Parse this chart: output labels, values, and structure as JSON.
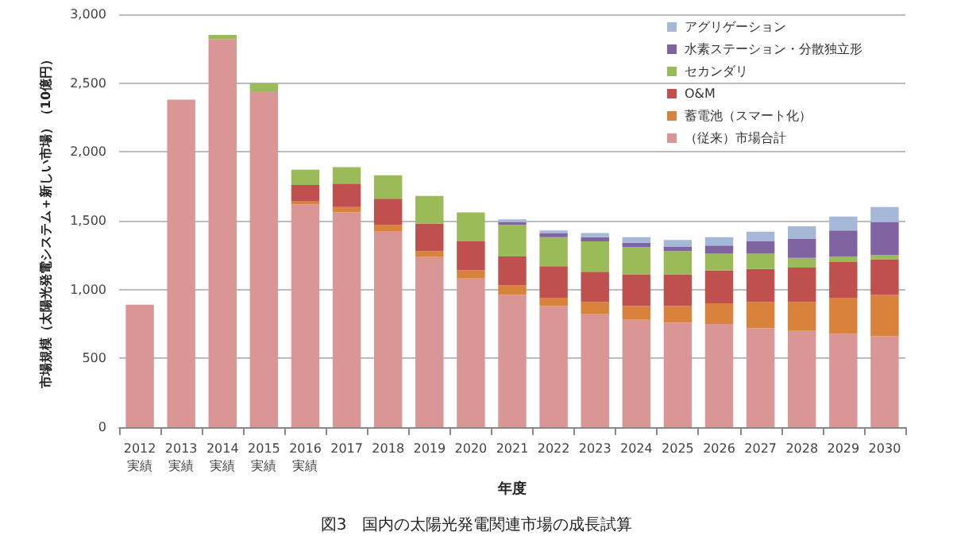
{
  "chart_data": {
    "type": "bar",
    "stacked": true,
    "title": "図3　国内の太陽光発電関連市場の成長試算",
    "xlabel": "年度",
    "ylabel": "市場規模（太陽光発電システム＋新しい市場）（10億円）",
    "categories": [
      "2012\n実績",
      "2013\n実績",
      "2014\n実績",
      "2015\n実績",
      "2016\n実績",
      "2017",
      "2018",
      "2019",
      "2020",
      "2021",
      "2022",
      "2023",
      "2024",
      "2025",
      "2026",
      "2027",
      "2028",
      "2029",
      "2030"
    ],
    "series": [
      {
        "name": "（従来）市場合計",
        "color": "#d99694",
        "values": [
          890,
          2380,
          2820,
          2440,
          1620,
          1560,
          1420,
          1240,
          1080,
          960,
          880,
          820,
          780,
          760,
          750,
          720,
          700,
          680,
          660
        ]
      },
      {
        "name": "蓄電池（スマート化）",
        "color": "#d9823b",
        "values": [
          null,
          null,
          null,
          null,
          20,
          40,
          50,
          40,
          60,
          70,
          60,
          90,
          100,
          120,
          150,
          190,
          210,
          260,
          300
        ]
      },
      {
        "name": "O&M",
        "color": "#c0504d",
        "values": [
          null,
          null,
          null,
          null,
          120,
          170,
          190,
          200,
          210,
          210,
          230,
          220,
          230,
          230,
          240,
          240,
          250,
          260,
          260
        ]
      },
      {
        "name": "セカンダリ",
        "color": "#9bbb59",
        "values": [
          null,
          null,
          30,
          60,
          110,
          120,
          170,
          200,
          210,
          230,
          210,
          220,
          200,
          170,
          120,
          110,
          70,
          40,
          30
        ]
      },
      {
        "name": "水素ステーション・分散独立形",
        "color": "#8064a2",
        "values": [
          null,
          null,
          null,
          null,
          null,
          null,
          null,
          null,
          null,
          20,
          30,
          30,
          30,
          30,
          60,
          90,
          140,
          190,
          240
        ]
      },
      {
        "name": "アグリゲーション",
        "color": "#a5b8d8",
        "values": [
          null,
          null,
          null,
          null,
          null,
          null,
          null,
          null,
          null,
          20,
          20,
          30,
          40,
          50,
          60,
          70,
          90,
          100,
          110
        ]
      }
    ],
    "ylim": [
      0,
      3000
    ],
    "yticks": [
      0,
      500,
      {
        "value": 1000,
        "label": "1,000"
      },
      {
        "value": 1500,
        "label": "1,500"
      },
      {
        "value": 2000,
        "label": "2,000"
      },
      {
        "value": 2500,
        "label": "2,500"
      },
      {
        "value": 3000,
        "label": "3,000"
      }
    ],
    "grid": "y",
    "legend": "top right"
  }
}
